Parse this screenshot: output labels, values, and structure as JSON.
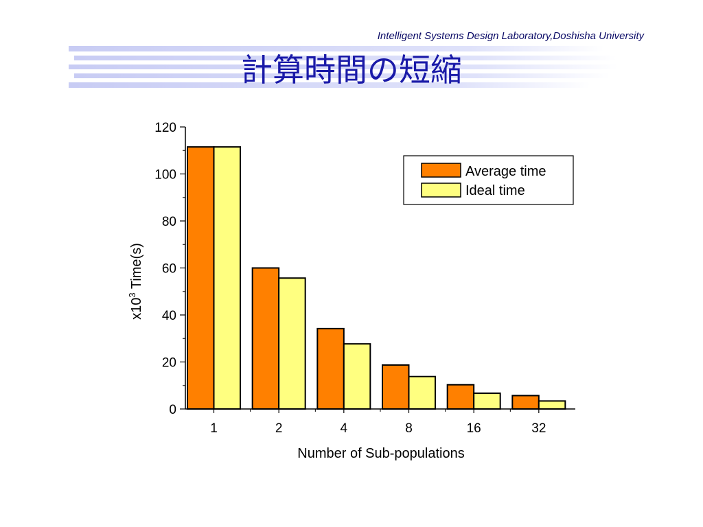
{
  "header": {
    "lab_name": "Intelligent Systems Design Laboratory,Doshisha University",
    "title": "計算時間の短縮"
  },
  "colors": {
    "average": "#ff8000",
    "ideal": "#ffff80",
    "title": "#1a1aa8",
    "title_bars": "#c8ccf4"
  },
  "chart_data": {
    "type": "bar",
    "categories": [
      "1",
      "2",
      "4",
      "8",
      "16",
      "32"
    ],
    "series": [
      {
        "name": "Average time",
        "values": [
          111.5,
          60,
          34.2,
          18.7,
          10.3,
          5.7
        ]
      },
      {
        "name": "Ideal time",
        "values": [
          111.5,
          55.7,
          27.7,
          13.8,
          6.7,
          3.4
        ]
      }
    ],
    "xlabel": "Number of Sub-populations",
    "ylabel_main": "x10",
    "ylabel_sup": "3",
    "ylabel_rest": " Time(s)",
    "ylim": [
      0,
      120
    ],
    "yticks": [
      0,
      20,
      40,
      60,
      80,
      100,
      120
    ],
    "grid": false,
    "legend_position": "top-right"
  }
}
